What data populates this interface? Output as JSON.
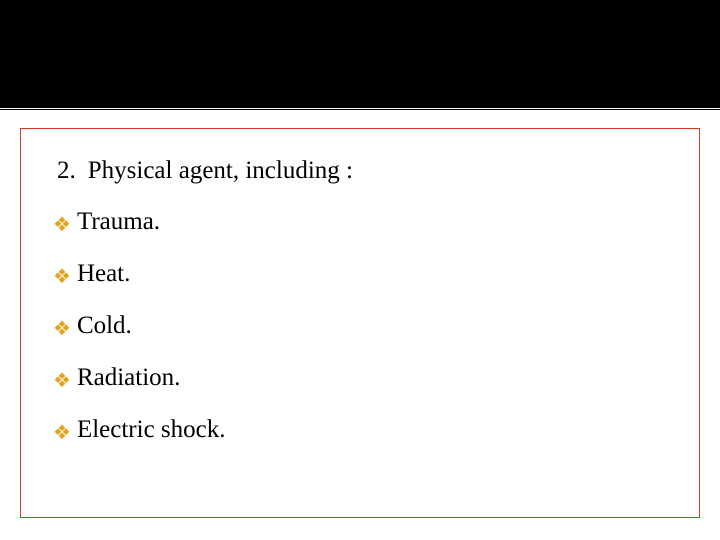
{
  "slide": {
    "heading_number": "2.",
    "heading_text": "Physical agent, including :",
    "bullets": [
      {
        "label": "Trauma."
      },
      {
        "label": "Heat."
      },
      {
        "label": "Cold."
      },
      {
        "label": "Radiation."
      },
      {
        "label": "Electric shock."
      }
    ]
  },
  "style": {
    "top_band_color": "#000000",
    "box_border_color": "#d03a2a",
    "bullet_icon_color": "#daa520",
    "text_color": "#000000",
    "background_color": "#ffffff",
    "heading_fontsize": 25,
    "bullet_fontsize": 25,
    "bullet_glyph": "❖"
  }
}
